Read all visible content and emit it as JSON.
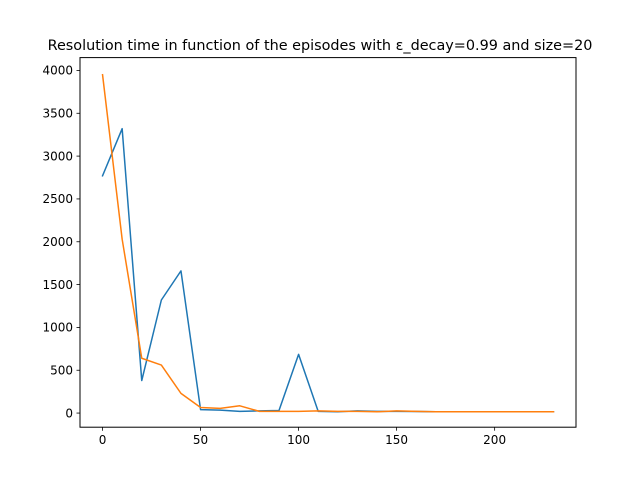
{
  "chart_data": {
    "type": "line",
    "title": "Resolution time in function of the episodes with ε_decay=0.99 and size=20",
    "xlabel": "",
    "ylabel": "",
    "xlim": [
      -11.5,
      241.5
    ],
    "ylim": [
      -165,
      4150
    ],
    "xticks": [
      0,
      50,
      100,
      150,
      200
    ],
    "yticks": [
      0,
      500,
      1000,
      1500,
      2000,
      2500,
      3000,
      3500,
      4000
    ],
    "grid": false,
    "legend": "none",
    "series": [
      {
        "color": "#1f77b4",
        "x": [
          0,
          10,
          20,
          30,
          40,
          50,
          60,
          70,
          80,
          90,
          100,
          110,
          120,
          130,
          140,
          150,
          160,
          170,
          180,
          190,
          200,
          210,
          220,
          230
        ],
        "y": [
          2770,
          3320,
          380,
          1320,
          1660,
          40,
          35,
          20,
          25,
          30,
          685,
          20,
          15,
          25,
          20,
          20,
          18,
          15,
          15,
          15,
          15,
          15,
          15,
          15
        ]
      },
      {
        "color": "#ff7f0e",
        "x": [
          0,
          10,
          20,
          30,
          40,
          50,
          60,
          70,
          80,
          90,
          100,
          110,
          120,
          130,
          140,
          150,
          160,
          170,
          180,
          190,
          200,
          210,
          220,
          230
        ],
        "y": [
          3950,
          2030,
          640,
          560,
          230,
          65,
          55,
          85,
          20,
          20,
          20,
          25,
          20,
          20,
          15,
          25,
          20,
          15,
          15,
          15,
          15,
          15,
          15,
          15
        ]
      }
    ]
  }
}
